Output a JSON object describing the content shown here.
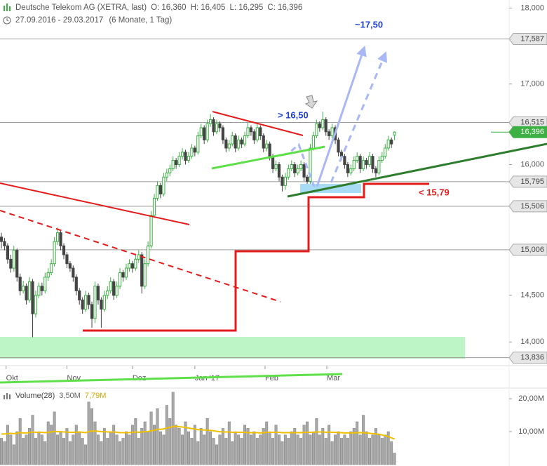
{
  "header": {
    "title": "Deutsche Telekom AG (XETRA, last)",
    "quote": [
      "O: 16,360",
      "H: 16,405",
      "L: 16,295",
      "C: 16,396"
    ],
    "range": "27.09.2016 - 29.03.2017",
    "period": "(6 Monate, 1 Tag)"
  },
  "annotations": {
    "target": "~17,50",
    "breakout": "> 16,50",
    "stop": "< 15,79"
  },
  "chart_data": [
    {
      "type": "candlestick",
      "log_scale": true,
      "up_color": "#3cb043",
      "down_color": "#444444",
      "xlim": [
        -0.45,
        162.5
      ],
      "ylim": [
        13.76,
        18.11
      ],
      "xticks": [
        {
          "value": 1.5,
          "label": "Okt"
        },
        {
          "value": 21,
          "label": "Nov"
        },
        {
          "value": 42,
          "label": "Dez"
        },
        {
          "value": 62,
          "label": "Jan '17"
        },
        {
          "value": 84.5,
          "label": "Feb"
        },
        {
          "value": 104.3,
          "label": "Mar"
        }
      ],
      "yticks": [
        {
          "value": 18,
          "label": "18,000"
        },
        {
          "value": 17,
          "label": "17,000"
        },
        {
          "value": 16,
          "label": "16,000"
        },
        {
          "value": 14.5,
          "label": "14,500"
        },
        {
          "value": 14,
          "label": "14,000"
        }
      ],
      "levels": [
        {
          "value": 17.587,
          "label": "17,587"
        },
        {
          "value": 16.515,
          "label": "16,515"
        },
        {
          "value": 15.795,
          "label": "15,795"
        },
        {
          "value": 15.506,
          "label": "15,506"
        },
        {
          "value": 15.006,
          "label": "15,006"
        },
        {
          "value": 13.836,
          "label": "13,836"
        }
      ],
      "last_price": {
        "value": 16.396,
        "label": "16,396",
        "color": "#3cb043"
      },
      "ohlc": [
        [
          15.15,
          15.2,
          15.02,
          15.1
        ],
        [
          15.1,
          15.14,
          15.0,
          15.05
        ],
        [
          15.05,
          15.08,
          14.85,
          14.9
        ],
        [
          14.9,
          14.95,
          14.75,
          14.8
        ],
        [
          14.8,
          15.05,
          14.76,
          15.0
        ],
        [
          15.0,
          15.02,
          14.65,
          14.7
        ],
        [
          14.7,
          14.74,
          14.5,
          14.55
        ],
        [
          14.55,
          14.66,
          14.52,
          14.6
        ],
        [
          14.6,
          14.63,
          14.4,
          14.45
        ],
        [
          14.45,
          14.7,
          14.42,
          14.65
        ],
        [
          14.65,
          14.68,
          14.05,
          14.3
        ],
        [
          14.3,
          14.55,
          14.26,
          14.5
        ],
        [
          14.5,
          14.64,
          14.47,
          14.6
        ],
        [
          14.6,
          14.64,
          14.5,
          14.55
        ],
        [
          14.55,
          14.75,
          14.52,
          14.7
        ],
        [
          14.7,
          14.8,
          14.66,
          14.75
        ],
        [
          14.75,
          14.9,
          14.72,
          14.85
        ],
        [
          14.85,
          15.15,
          14.82,
          15.1
        ],
        [
          15.1,
          15.26,
          15.06,
          15.2
        ],
        [
          15.2,
          15.23,
          15.0,
          15.05
        ],
        [
          15.05,
          15.08,
          14.9,
          14.95
        ],
        [
          14.95,
          14.98,
          14.8,
          14.85
        ],
        [
          14.85,
          14.88,
          14.76,
          14.8
        ],
        [
          14.8,
          14.83,
          14.65,
          14.7
        ],
        [
          14.7,
          14.73,
          14.5,
          14.55
        ],
        [
          14.55,
          14.58,
          14.4,
          14.45
        ],
        [
          14.45,
          14.48,
          14.3,
          14.35
        ],
        [
          14.35,
          14.55,
          14.32,
          14.5
        ],
        [
          14.5,
          14.53,
          14.35,
          14.4
        ],
        [
          14.4,
          14.43,
          14.15,
          14.25
        ],
        [
          14.25,
          14.65,
          14.2,
          14.6
        ],
        [
          14.6,
          14.63,
          14.4,
          14.45
        ],
        [
          14.45,
          14.48,
          14.15,
          14.35
        ],
        [
          14.35,
          14.55,
          14.32,
          14.5
        ],
        [
          14.5,
          14.6,
          14.46,
          14.55
        ],
        [
          14.55,
          14.7,
          14.52,
          14.65
        ],
        [
          14.65,
          14.68,
          14.45,
          14.5
        ],
        [
          14.5,
          14.65,
          14.47,
          14.6
        ],
        [
          14.6,
          14.8,
          14.57,
          14.75
        ],
        [
          14.75,
          14.78,
          14.65,
          14.7
        ],
        [
          14.7,
          14.85,
          14.67,
          14.8
        ],
        [
          14.8,
          14.9,
          14.76,
          14.85
        ],
        [
          14.85,
          14.88,
          14.75,
          14.8
        ],
        [
          14.8,
          14.96,
          14.77,
          14.9
        ],
        [
          14.9,
          15.0,
          14.86,
          14.95
        ],
        [
          14.95,
          14.98,
          14.52,
          14.6
        ],
        [
          14.6,
          14.9,
          14.57,
          14.85
        ],
        [
          14.85,
          15.1,
          14.82,
          15.05
        ],
        [
          15.05,
          15.45,
          15.02,
          15.4
        ],
        [
          15.4,
          15.65,
          15.37,
          15.6
        ],
        [
          15.6,
          15.8,
          15.57,
          15.75
        ],
        [
          15.75,
          15.78,
          15.6,
          15.65
        ],
        [
          15.65,
          15.9,
          15.62,
          15.85
        ],
        [
          15.85,
          15.95,
          15.8,
          15.9
        ],
        [
          15.9,
          16.0,
          15.86,
          15.95
        ],
        [
          15.95,
          16.1,
          15.92,
          16.05
        ],
        [
          16.05,
          16.08,
          15.95,
          16.0
        ],
        [
          16.0,
          16.15,
          15.97,
          16.1
        ],
        [
          16.1,
          16.2,
          16.06,
          16.15
        ],
        [
          16.15,
          16.18,
          16.0,
          16.05
        ],
        [
          16.05,
          16.15,
          16.02,
          16.1
        ],
        [
          16.1,
          16.25,
          16.07,
          16.2
        ],
        [
          16.2,
          16.23,
          16.1,
          16.15
        ],
        [
          16.15,
          16.4,
          16.12,
          16.35
        ],
        [
          16.35,
          16.5,
          16.32,
          16.45
        ],
        [
          16.45,
          16.48,
          16.25,
          16.3
        ],
        [
          16.3,
          16.55,
          16.27,
          16.5
        ],
        [
          16.5,
          16.62,
          16.46,
          16.55
        ],
        [
          16.55,
          16.58,
          16.35,
          16.4
        ],
        [
          16.4,
          16.55,
          16.37,
          16.5
        ],
        [
          16.5,
          16.53,
          16.4,
          16.45
        ],
        [
          16.45,
          16.48,
          16.25,
          16.3
        ],
        [
          16.3,
          16.33,
          16.15,
          16.2
        ],
        [
          16.2,
          16.3,
          16.16,
          16.25
        ],
        [
          16.25,
          16.4,
          16.22,
          16.35
        ],
        [
          16.35,
          16.38,
          16.15,
          16.2
        ],
        [
          16.2,
          16.35,
          16.17,
          16.3
        ],
        [
          16.3,
          16.33,
          16.2,
          16.25
        ],
        [
          16.25,
          16.4,
          16.22,
          16.35
        ],
        [
          16.35,
          16.52,
          16.32,
          16.45
        ],
        [
          16.45,
          16.48,
          16.35,
          16.4
        ],
        [
          16.4,
          16.43,
          16.25,
          16.3
        ],
        [
          16.3,
          16.5,
          16.27,
          16.45
        ],
        [
          16.45,
          16.48,
          16.3,
          16.35
        ],
        [
          16.35,
          16.38,
          16.15,
          16.2
        ],
        [
          16.2,
          16.3,
          16.16,
          16.25
        ],
        [
          16.25,
          16.28,
          16.05,
          16.1
        ],
        [
          16.1,
          16.13,
          15.9,
          15.95
        ],
        [
          15.95,
          16.05,
          15.92,
          16.0
        ],
        [
          16.0,
          16.03,
          15.8,
          15.85
        ],
        [
          15.85,
          15.88,
          15.68,
          15.75
        ],
        [
          15.75,
          15.9,
          15.7,
          15.85
        ],
        [
          15.85,
          16.0,
          15.82,
          15.95
        ],
        [
          15.95,
          16.05,
          15.92,
          16.0
        ],
        [
          16.0,
          16.03,
          15.85,
          15.9
        ],
        [
          15.9,
          16.0,
          15.87,
          15.95
        ],
        [
          15.95,
          16.05,
          15.92,
          16.0
        ],
        [
          16.0,
          16.03,
          15.8,
          15.85
        ],
        [
          15.85,
          15.88,
          15.75,
          15.8
        ],
        [
          15.8,
          16.25,
          15.77,
          16.2
        ],
        [
          16.2,
          16.4,
          16.17,
          16.35
        ],
        [
          16.35,
          16.55,
          16.32,
          16.5
        ],
        [
          16.5,
          16.53,
          16.4,
          16.45
        ],
        [
          16.45,
          16.65,
          16.42,
          16.55
        ],
        [
          16.55,
          16.58,
          16.35,
          16.4
        ],
        [
          16.4,
          16.43,
          16.3,
          16.35
        ],
        [
          16.35,
          16.5,
          16.32,
          16.45
        ],
        [
          16.45,
          16.48,
          16.25,
          16.3
        ],
        [
          16.3,
          16.33,
          16.1,
          16.15
        ],
        [
          16.15,
          16.18,
          16.05,
          16.1
        ],
        [
          16.1,
          16.13,
          15.95,
          16.0
        ],
        [
          16.0,
          16.03,
          15.85,
          15.9
        ],
        [
          15.9,
          16.0,
          15.87,
          15.95
        ],
        [
          15.95,
          16.1,
          15.92,
          16.05
        ],
        [
          16.05,
          16.15,
          16.02,
          16.1
        ],
        [
          16.1,
          16.13,
          15.9,
          15.95
        ],
        [
          15.95,
          16.1,
          15.92,
          16.05
        ],
        [
          16.05,
          16.08,
          15.95,
          16.0
        ],
        [
          16.0,
          16.15,
          15.97,
          16.1
        ],
        [
          16.1,
          16.13,
          15.9,
          15.95
        ],
        [
          15.95,
          15.98,
          15.85,
          15.9
        ],
        [
          15.9,
          16.1,
          15.87,
          16.05
        ],
        [
          16.05,
          16.15,
          16.02,
          16.1
        ],
        [
          16.1,
          16.25,
          16.07,
          16.2
        ],
        [
          16.2,
          16.35,
          16.17,
          16.3
        ],
        [
          16.3,
          16.33,
          16.2,
          16.25
        ],
        [
          16.36,
          16.405,
          16.295,
          16.396
        ]
      ]
    },
    {
      "type": "bar",
      "title": "Volume(28)",
      "xlim": [
        -0.45,
        162.5
      ],
      "ylim": [
        0,
        22.8
      ],
      "yticks": [
        {
          "value": 10,
          "label": "10,00M"
        },
        {
          "value": 20,
          "label": "20,00M"
        }
      ],
      "series": [
        {
          "type": "bar",
          "color": "#a8a8a8",
          "last_value_label": "3,50M",
          "values": [
            8,
            7,
            12,
            9,
            6,
            10,
            14,
            8,
            9,
            11,
            15,
            8,
            10,
            9,
            7,
            13,
            12,
            16,
            9,
            10,
            8,
            11,
            7,
            9,
            12,
            10,
            8,
            6,
            19,
            17,
            13,
            9,
            7,
            11,
            8,
            10,
            12,
            9,
            7,
            8,
            10,
            9,
            12,
            14,
            8,
            11,
            13,
            10,
            16,
            12,
            17,
            10,
            9,
            18,
            14,
            22,
            12,
            11,
            9,
            13,
            10,
            8,
            12,
            7,
            11,
            9,
            14,
            10,
            8,
            6,
            9,
            11,
            8,
            13,
            7,
            10,
            9,
            8,
            12,
            11,
            9,
            10,
            8,
            9,
            11,
            13,
            10,
            8,
            12,
            9,
            7,
            9,
            8,
            10,
            11,
            9,
            8,
            12,
            13,
            9,
            10,
            14,
            9,
            11,
            8,
            12,
            7,
            9,
            10,
            8,
            9,
            8,
            10,
            11,
            13,
            9,
            15,
            10,
            8,
            9,
            11,
            9,
            8,
            9,
            10,
            7,
            3.5
          ]
        },
        {
          "type": "line",
          "color": "#f0c000",
          "last_value_label": "7,79M",
          "values": [
            9.3,
            9.3,
            9.4,
            9.5,
            9.4,
            9.5,
            9.7,
            9.6,
            9.6,
            9.7,
            9.9,
            9.8,
            9.8,
            9.8,
            9.7,
            9.8,
            9.9,
            10.1,
            10.0,
            10.0,
            9.9,
            9.9,
            9.8,
            9.8,
            9.8,
            9.9,
            9.8,
            9.7,
            10.0,
            10.2,
            10.2,
            10.1,
            10.0,
            10.0,
            9.9,
            9.9,
            9.9,
            9.8,
            9.7,
            9.7,
            9.7,
            9.7,
            9.8,
            9.9,
            9.8,
            9.9,
            10.0,
            10.0,
            10.3,
            10.4,
            10.7,
            10.7,
            10.8,
            11.1,
            11.3,
            11.6,
            11.6,
            11.5,
            11.4,
            11.3,
            11.1,
            10.9,
            10.8,
            10.6,
            10.6,
            10.5,
            10.5,
            10.4,
            10.3,
            10.1,
            10.0,
            9.9,
            9.9,
            9.9,
            9.8,
            9.8,
            9.8,
            9.8,
            9.8,
            9.7,
            9.7,
            9.7,
            9.7,
            9.6,
            9.7,
            9.8,
            9.8,
            9.8,
            9.8,
            9.8,
            9.7,
            9.7,
            9.7,
            9.7,
            9.7,
            9.7,
            9.7,
            9.8,
            9.8,
            9.8,
            9.8,
            9.9,
            9.9,
            9.9,
            9.8,
            9.9,
            9.8,
            9.8,
            9.7,
            9.7,
            9.6,
            9.6,
            9.6,
            9.6,
            9.7,
            9.7,
            9.7,
            9.6,
            9.5,
            9.4,
            9.3,
            9.2,
            9.0,
            8.8,
            8.5,
            8.1,
            7.79
          ]
        }
      ]
    }
  ]
}
